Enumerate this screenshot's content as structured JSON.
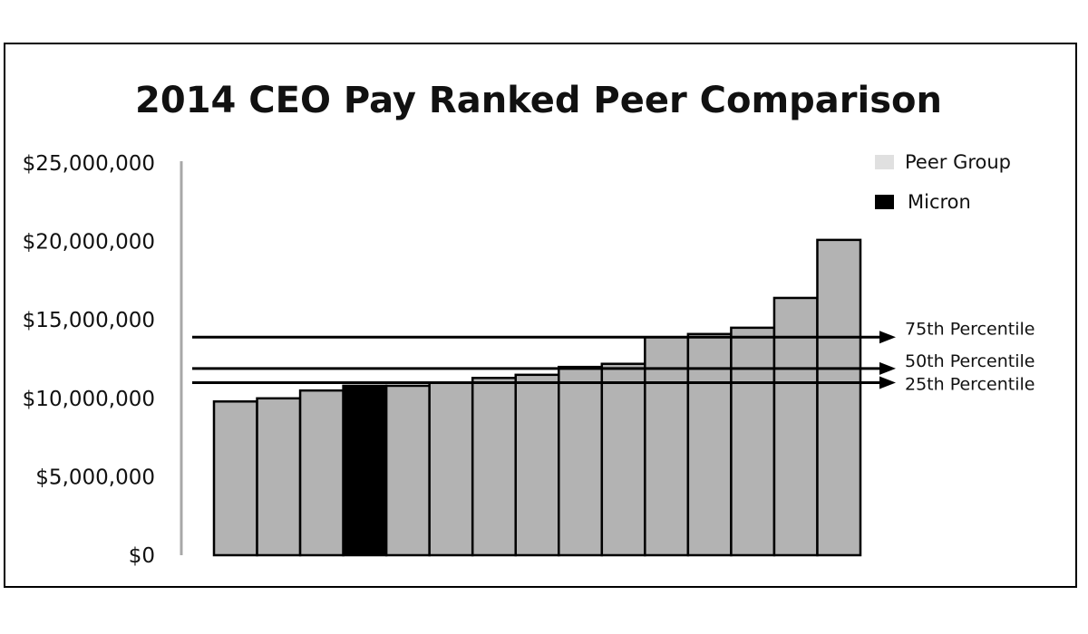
{
  "chart_data": {
    "type": "bar",
    "title": "2014 CEO Pay Ranked Peer Comparison",
    "xlabel": "",
    "ylabel": "",
    "ylim": [
      0,
      25000000
    ],
    "y_ticks": [
      0,
      5000000,
      10000000,
      15000000,
      20000000,
      25000000
    ],
    "y_tick_labels": [
      "$0",
      "$5,000,000",
      "$10,000,000",
      "$15,000,000",
      "$20,000,000",
      "$25,000,000"
    ],
    "series": [
      {
        "name": "Peer Group",
        "color": "#b3b3b3",
        "values": [
          9800000,
          10000000,
          10500000,
          null,
          10800000,
          11000000,
          11300000,
          11500000,
          12000000,
          12200000,
          13900000,
          14100000,
          14500000,
          16400000,
          20100000
        ]
      },
      {
        "name": "Micron",
        "color": "#000000",
        "values": [
          null,
          null,
          null,
          10800000,
          null,
          null,
          null,
          null,
          null,
          null,
          null,
          null,
          null,
          null,
          null
        ]
      }
    ],
    "legend": {
      "position": "top-right",
      "entries": [
        {
          "label": "Peer Group",
          "color": "#e0e0e0"
        },
        {
          "label": "Micron",
          "color": "#000000"
        }
      ]
    },
    "reference_lines": [
      {
        "label": "75th Percentile",
        "value": 13900000
      },
      {
        "label": "50th Percentile",
        "value": 11900000
      },
      {
        "label": "25th Percentile",
        "value": 11000000
      }
    ],
    "grid": false
  }
}
